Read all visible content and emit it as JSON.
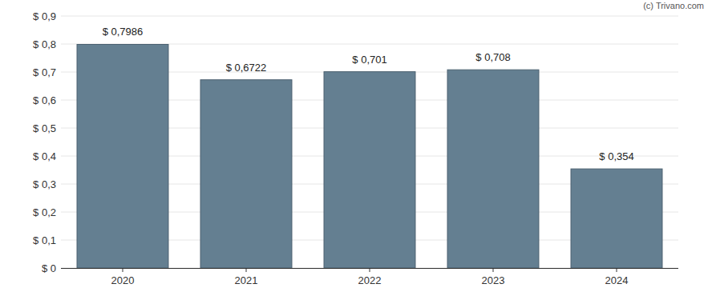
{
  "chart_data": {
    "type": "bar",
    "annotations": [
      "(c) Trivano.com"
    ],
    "categories": [
      "2020",
      "2021",
      "2022",
      "2023",
      "2024"
    ],
    "values": [
      0.7986,
      0.6722,
      0.701,
      0.708,
      0.354
    ],
    "value_labels": [
      "$ 0,7986",
      "$ 0,6722",
      "$ 0,701",
      "$ 0,708",
      "$ 0,354"
    ],
    "data_labels": true,
    "color": "#647f91",
    "ylim": [
      0,
      0.9
    ],
    "yticks": [
      {
        "value": 0,
        "label": "$ 0"
      },
      {
        "value": 0.1,
        "label": "$ 0,1"
      },
      {
        "value": 0.2,
        "label": "$ 0,2"
      },
      {
        "value": 0.3,
        "label": "$ 0,3"
      },
      {
        "value": 0.4,
        "label": "$ 0,4"
      },
      {
        "value": 0.5,
        "label": "$ 0,5"
      },
      {
        "value": 0.6,
        "label": "$ 0,6"
      },
      {
        "value": 0.7,
        "label": "$ 0,7"
      },
      {
        "value": 0.8,
        "label": "$ 0,8"
      },
      {
        "value": 0.9,
        "label": "$ 0,9"
      }
    ],
    "grid": true
  }
}
